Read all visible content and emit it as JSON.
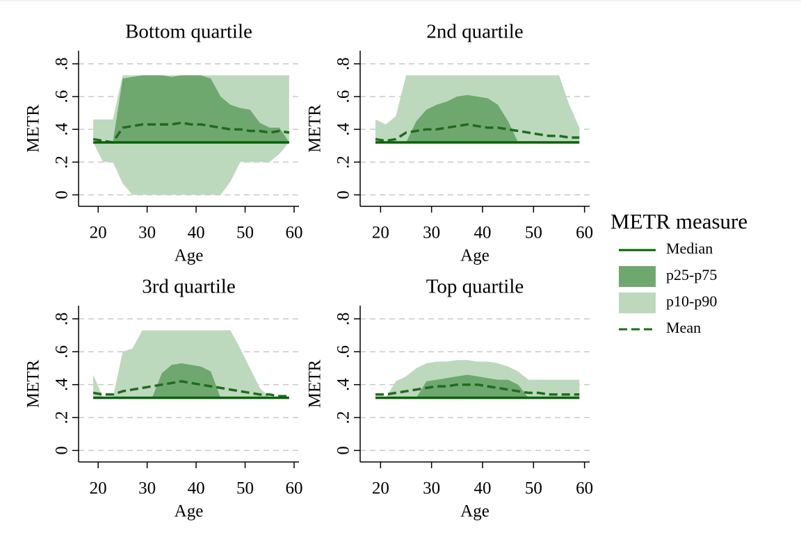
{
  "chart_data": [
    {
      "type": "area",
      "title": "Bottom quartile",
      "xlabel": "Age",
      "ylabel": "METR",
      "legend_title": "METR measure",
      "x": [
        19,
        21,
        23,
        25,
        27,
        29,
        31,
        33,
        35,
        37,
        39,
        41,
        43,
        45,
        47,
        49,
        51,
        53,
        55,
        57,
        59
      ],
      "xlim": [
        16,
        61
      ],
      "xticks": [
        20,
        30,
        40,
        50,
        60
      ],
      "ylim": [
        -0.07,
        0.88
      ],
      "yticks": [
        0,
        {
          "value": 0.2,
          "label": ".2"
        },
        {
          "value": 0.4,
          "label": ".4"
        },
        {
          "value": 0.6,
          "label": ".6"
        },
        {
          "value": 0.8,
          "label": ".8"
        }
      ],
      "grid": true,
      "series": [
        {
          "name": "Median",
          "type": "line",
          "color": "#006400",
          "values": [
            0.32,
            0.32,
            0.32,
            0.32,
            0.32,
            0.32,
            0.32,
            0.32,
            0.32,
            0.32,
            0.32,
            0.32,
            0.32,
            0.32,
            0.32,
            0.32,
            0.32,
            0.32,
            0.32,
            0.32,
            0.32
          ]
        },
        {
          "name": "p25-p75",
          "type": "area",
          "color": "#6fa86f",
          "upper": [
            0.32,
            0.32,
            0.32,
            0.71,
            0.72,
            0.73,
            0.73,
            0.73,
            0.72,
            0.73,
            0.73,
            0.73,
            0.71,
            0.6,
            0.55,
            0.53,
            0.52,
            0.44,
            0.41,
            0.41,
            0.32
          ],
          "lower": [
            0.32,
            0.32,
            0.32,
            0.32,
            0.32,
            0.32,
            0.32,
            0.32,
            0.32,
            0.32,
            0.32,
            0.32,
            0.32,
            0.32,
            0.32,
            0.32,
            0.32,
            0.32,
            0.32,
            0.32,
            0.32
          ]
        },
        {
          "name": "p10-p90",
          "type": "area",
          "color": "#bdd9bd",
          "upper": [
            0.46,
            0.46,
            0.46,
            0.73,
            0.73,
            0.73,
            0.73,
            0.73,
            0.73,
            0.73,
            0.73,
            0.73,
            0.73,
            0.73,
            0.73,
            0.73,
            0.73,
            0.73,
            0.73,
            0.73,
            0.73
          ],
          "lower": [
            0.32,
            0.2,
            0.2,
            0.07,
            0,
            0,
            0,
            0,
            0,
            0,
            0,
            0,
            0,
            0,
            0.08,
            0.2,
            0.2,
            0.2,
            0.2,
            0.25,
            0.32
          ]
        },
        {
          "name": "Mean",
          "type": "line",
          "dash": true,
          "color": "#1f6b1f",
          "values": [
            0.34,
            0.33,
            0.32,
            0.41,
            0.42,
            0.43,
            0.43,
            0.43,
            0.43,
            0.44,
            0.43,
            0.43,
            0.42,
            0.41,
            0.4,
            0.4,
            0.39,
            0.39,
            0.38,
            0.39,
            0.38
          ]
        }
      ]
    },
    {
      "type": "area",
      "title": "2nd quartile",
      "xlabel": "Age",
      "ylabel": "METR",
      "x": [
        19,
        21,
        23,
        25,
        27,
        29,
        31,
        33,
        35,
        37,
        39,
        41,
        43,
        45,
        47,
        49,
        51,
        53,
        55,
        57,
        59
      ],
      "xlim": [
        16,
        61
      ],
      "xticks": [
        20,
        30,
        40,
        50,
        60
      ],
      "ylim": [
        -0.07,
        0.88
      ],
      "yticks": [
        0,
        {
          "value": 0.2,
          "label": ".2"
        },
        {
          "value": 0.4,
          "label": ".4"
        },
        {
          "value": 0.6,
          "label": ".6"
        },
        {
          "value": 0.8,
          "label": ".8"
        }
      ],
      "grid": true,
      "series": [
        {
          "name": "Median",
          "type": "line",
          "color": "#006400",
          "values": [
            0.32,
            0.32,
            0.32,
            0.32,
            0.32,
            0.32,
            0.32,
            0.32,
            0.32,
            0.32,
            0.32,
            0.32,
            0.32,
            0.32,
            0.32,
            0.32,
            0.32,
            0.32,
            0.32,
            0.32,
            0.32
          ]
        },
        {
          "name": "p25-p75",
          "type": "area",
          "color": "#6fa86f",
          "upper": [
            0.32,
            0.32,
            0.32,
            0.32,
            0.45,
            0.52,
            0.55,
            0.57,
            0.6,
            0.61,
            0.6,
            0.59,
            0.55,
            0.45,
            0.32,
            0.32,
            0.32,
            0.32,
            0.32,
            0.32,
            0.32
          ],
          "lower": [
            0.32,
            0.32,
            0.32,
            0.32,
            0.32,
            0.32,
            0.32,
            0.32,
            0.32,
            0.32,
            0.32,
            0.32,
            0.32,
            0.32,
            0.32,
            0.32,
            0.32,
            0.32,
            0.32,
            0.32,
            0.32
          ]
        },
        {
          "name": "p10-p90",
          "type": "area",
          "color": "#bdd9bd",
          "upper": [
            0.46,
            0.43,
            0.48,
            0.73,
            0.73,
            0.73,
            0.73,
            0.73,
            0.73,
            0.73,
            0.73,
            0.73,
            0.73,
            0.73,
            0.73,
            0.73,
            0.73,
            0.73,
            0.73,
            0.55,
            0.41
          ],
          "lower": [
            0.32,
            0.32,
            0.32,
            0.32,
            0.32,
            0.32,
            0.32,
            0.32,
            0.32,
            0.32,
            0.32,
            0.32,
            0.32,
            0.32,
            0.32,
            0.32,
            0.32,
            0.32,
            0.32,
            0.32,
            0.32
          ]
        },
        {
          "name": "Mean",
          "type": "line",
          "dash": true,
          "color": "#1f6b1f",
          "values": [
            0.34,
            0.33,
            0.34,
            0.38,
            0.39,
            0.4,
            0.4,
            0.41,
            0.42,
            0.43,
            0.42,
            0.41,
            0.41,
            0.4,
            0.39,
            0.38,
            0.37,
            0.36,
            0.36,
            0.35,
            0.35
          ]
        }
      ]
    },
    {
      "type": "area",
      "title": "3rd quartile",
      "xlabel": "Age",
      "ylabel": "METR",
      "x": [
        19,
        21,
        23,
        25,
        27,
        29,
        31,
        33,
        35,
        37,
        39,
        41,
        43,
        45,
        47,
        49,
        51,
        53,
        55,
        57,
        59
      ],
      "xlim": [
        16,
        61
      ],
      "xticks": [
        20,
        30,
        40,
        50,
        60
      ],
      "ylim": [
        -0.07,
        0.88
      ],
      "yticks": [
        0,
        {
          "value": 0.2,
          "label": ".2"
        },
        {
          "value": 0.4,
          "label": ".4"
        },
        {
          "value": 0.6,
          "label": ".6"
        },
        {
          "value": 0.8,
          "label": ".8"
        }
      ],
      "grid": true,
      "series": [
        {
          "name": "Median",
          "type": "line",
          "color": "#006400",
          "values": [
            0.32,
            0.32,
            0.32,
            0.32,
            0.32,
            0.32,
            0.32,
            0.32,
            0.32,
            0.32,
            0.32,
            0.32,
            0.32,
            0.32,
            0.32,
            0.32,
            0.32,
            0.32,
            0.32,
            0.32,
            0.32
          ]
        },
        {
          "name": "p25-p75",
          "type": "area",
          "color": "#6fa86f",
          "upper": [
            0.32,
            0.32,
            0.32,
            0.32,
            0.32,
            0.32,
            0.32,
            0.47,
            0.52,
            0.53,
            0.52,
            0.51,
            0.48,
            0.32,
            0.32,
            0.32,
            0.32,
            0.32,
            0.32,
            0.32,
            0.32
          ],
          "lower": [
            0.32,
            0.32,
            0.32,
            0.32,
            0.32,
            0.32,
            0.32,
            0.32,
            0.32,
            0.32,
            0.32,
            0.32,
            0.32,
            0.32,
            0.32,
            0.32,
            0.32,
            0.32,
            0.32,
            0.32,
            0.32
          ]
        },
        {
          "name": "p10-p90",
          "type": "area",
          "color": "#bdd9bd",
          "upper": [
            0.46,
            0.32,
            0.32,
            0.6,
            0.62,
            0.73,
            0.73,
            0.73,
            0.73,
            0.73,
            0.73,
            0.73,
            0.73,
            0.73,
            0.73,
            0.62,
            0.5,
            0.38,
            0.32,
            0.32,
            0.32
          ],
          "lower": [
            0.32,
            0.32,
            0.32,
            0.32,
            0.32,
            0.32,
            0.32,
            0.32,
            0.32,
            0.32,
            0.32,
            0.32,
            0.32,
            0.32,
            0.32,
            0.32,
            0.32,
            0.32,
            0.32,
            0.32,
            0.32
          ]
        },
        {
          "name": "Mean",
          "type": "line",
          "dash": true,
          "color": "#1f6b1f",
          "values": [
            0.35,
            0.34,
            0.34,
            0.36,
            0.37,
            0.38,
            0.39,
            0.4,
            0.41,
            0.42,
            0.41,
            0.4,
            0.39,
            0.38,
            0.37,
            0.36,
            0.35,
            0.34,
            0.34,
            0.33,
            0.33
          ]
        }
      ]
    },
    {
      "type": "area",
      "title": "Top quartile",
      "xlabel": "Age",
      "ylabel": "METR",
      "x": [
        19,
        21,
        23,
        25,
        27,
        29,
        31,
        33,
        35,
        37,
        39,
        41,
        43,
        45,
        47,
        49,
        51,
        53,
        55,
        57,
        59
      ],
      "xlim": [
        16,
        61
      ],
      "xticks": [
        20,
        30,
        40,
        50,
        60
      ],
      "ylim": [
        -0.07,
        0.88
      ],
      "yticks": [
        0,
        {
          "value": 0.2,
          "label": ".2"
        },
        {
          "value": 0.4,
          "label": ".4"
        },
        {
          "value": 0.6,
          "label": ".6"
        },
        {
          "value": 0.8,
          "label": ".8"
        }
      ],
      "grid": true,
      "series": [
        {
          "name": "Median",
          "type": "line",
          "color": "#006400",
          "values": [
            0.32,
            0.32,
            0.32,
            0.32,
            0.32,
            0.32,
            0.32,
            0.32,
            0.32,
            0.32,
            0.32,
            0.32,
            0.32,
            0.32,
            0.32,
            0.32,
            0.32,
            0.32,
            0.32,
            0.32,
            0.32
          ]
        },
        {
          "name": "p25-p75",
          "type": "area",
          "color": "#6fa86f",
          "upper": [
            0.32,
            0.32,
            0.32,
            0.32,
            0.32,
            0.42,
            0.43,
            0.44,
            0.45,
            0.46,
            0.45,
            0.44,
            0.43,
            0.43,
            0.4,
            0.32,
            0.32,
            0.32,
            0.32,
            0.32,
            0.32
          ],
          "lower": [
            0.32,
            0.32,
            0.32,
            0.32,
            0.32,
            0.32,
            0.32,
            0.32,
            0.32,
            0.32,
            0.32,
            0.32,
            0.32,
            0.32,
            0.32,
            0.32,
            0.32,
            0.32,
            0.32,
            0.32,
            0.32
          ]
        },
        {
          "name": "p10-p90",
          "type": "area",
          "color": "#bdd9bd",
          "upper": [
            0.32,
            0.32,
            0.42,
            0.45,
            0.5,
            0.53,
            0.54,
            0.54,
            0.55,
            0.55,
            0.54,
            0.54,
            0.53,
            0.51,
            0.48,
            0.43,
            0.43,
            0.43,
            0.43,
            0.43,
            0.43
          ],
          "lower": [
            0.32,
            0.32,
            0.32,
            0.32,
            0.32,
            0.32,
            0.32,
            0.32,
            0.32,
            0.32,
            0.32,
            0.32,
            0.32,
            0.32,
            0.32,
            0.32,
            0.32,
            0.32,
            0.32,
            0.32,
            0.32
          ]
        },
        {
          "name": "Mean",
          "type": "line",
          "dash": true,
          "color": "#1f6b1f",
          "values": [
            0.34,
            0.34,
            0.35,
            0.36,
            0.37,
            0.38,
            0.39,
            0.39,
            0.4,
            0.4,
            0.4,
            0.39,
            0.38,
            0.37,
            0.36,
            0.35,
            0.35,
            0.34,
            0.34,
            0.34,
            0.34
          ]
        }
      ]
    }
  ]
}
